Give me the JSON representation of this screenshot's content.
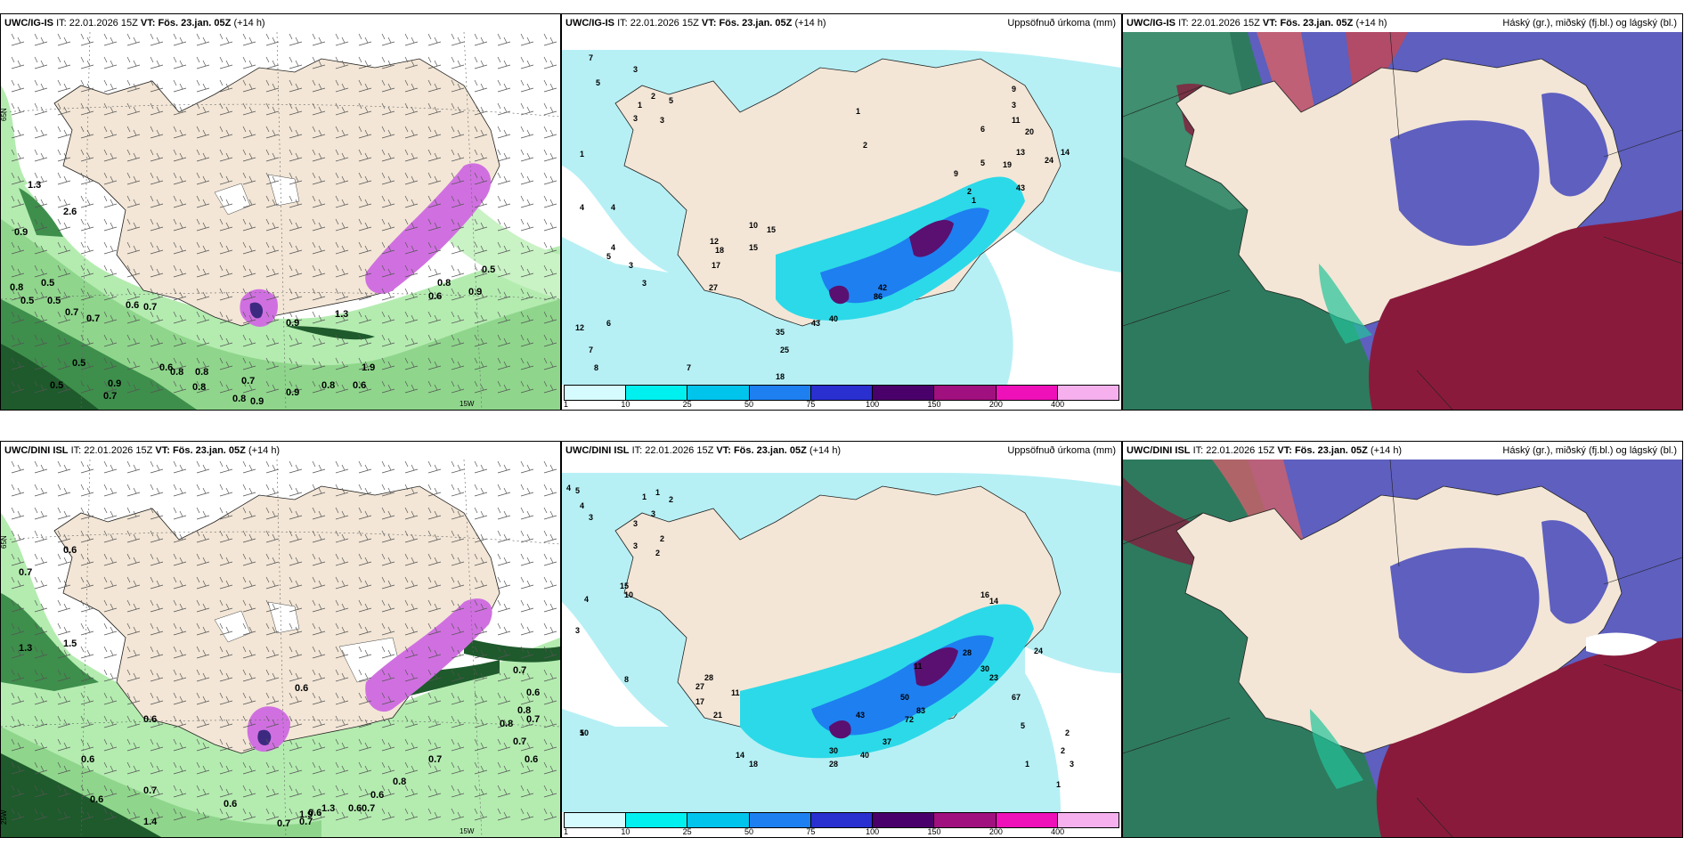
{
  "top_row": {
    "wind": {
      "model": "UWC/IG-IS",
      "it_label": "IT:",
      "it_time": "22.01.2026 15Z",
      "vt_label": "VT:",
      "vt_time": "Fös. 23.jan. 05Z",
      "lead": "(+14 h)",
      "lat_label": "65N",
      "lon_label": "15W",
      "values": [
        "1.3",
        "2.6",
        "0.9",
        "0.8",
        "0.5",
        "0.5",
        "0.5",
        "0.7",
        "0.7",
        "0.6",
        "0.7",
        "0.5",
        "0.5",
        "0.9",
        "0.7",
        "0.6",
        "0.8",
        "0.8",
        "0.8",
        "0.7",
        "0.8",
        "0.9",
        "0.9",
        "0.8",
        "0.6",
        "1.9",
        "1.3",
        "0.9",
        "0.6",
        "0.8",
        "0.5",
        "0.9"
      ]
    },
    "precip": {
      "model": "UWC/IG-IS",
      "it_label": "IT:",
      "it_time": "22.01.2026 15Z",
      "vt_label": "VT:",
      "vt_time": "Fös. 23.jan. 05Z",
      "lead": "(+14 h)",
      "title": "Uppsöfnuð úrkoma (mm)",
      "values": [
        "7",
        "5",
        "3",
        "1",
        "2",
        "3",
        "5",
        "3",
        "1",
        "2",
        "1",
        "4",
        "4",
        "4",
        "5",
        "3",
        "3",
        "12",
        "6",
        "7",
        "8",
        "7",
        "25",
        "18",
        "35",
        "43",
        "40",
        "86",
        "42",
        "15",
        "10",
        "15",
        "12",
        "18",
        "17",
        "27",
        "6",
        "9",
        "3",
        "11",
        "13",
        "20",
        "24",
        "14",
        "19",
        "43",
        "5",
        "9",
        "2",
        "1"
      ]
    },
    "cloud": {
      "model": "UWC/IG-IS",
      "it_label": "IT:",
      "it_time": "22.01.2026 15Z",
      "vt_label": "VT:",
      "vt_time": "Fös. 23.jan. 05Z",
      "lead": "(+14 h)",
      "title": "Háský (gr.), miðský (fj.bl.) og lágský (bl.)"
    }
  },
  "bottom_row": {
    "wind": {
      "model": "UWC/DINI ISL",
      "it_label": "IT:",
      "it_time": "22.01.2026 15Z",
      "vt_label": "VT:",
      "vt_time": "Fös. 23.jan. 05Z",
      "lead": "(+14 h)",
      "lat_label": "65N",
      "lon_label": "15W",
      "lon_label_left": "25W",
      "values": [
        "0.6",
        "0.7",
        "1.3",
        "1.5",
        "0.6",
        "0.6",
        "0.6",
        "0.6",
        "0.7",
        "0.7",
        "0.7",
        "0.6",
        "1.3",
        "1.9",
        "0.6",
        "0.7",
        "0.6",
        "0.8",
        "0.7",
        "0.7",
        "0.6",
        "0.8",
        "0.8",
        "0.7",
        "0.7",
        "0.6",
        "1.4",
        "0.6"
      ]
    },
    "precip": {
      "model": "UWC/DINI ISL",
      "it_label": "IT:",
      "it_time": "22.01.2026 15Z",
      "vt_label": "VT:",
      "vt_time": "Fös. 23.jan. 05Z",
      "lead": "(+14 h)",
      "title": "Uppsöfnuð úrkoma (mm)",
      "values": [
        "4",
        "5",
        "4",
        "3",
        "1",
        "1",
        "2",
        "3",
        "3",
        "2",
        "2",
        "3",
        "15",
        "10",
        "8",
        "5",
        "10",
        "4",
        "3",
        "28",
        "27",
        "17",
        "11",
        "21",
        "14",
        "18",
        "30",
        "28",
        "40",
        "37",
        "83",
        "72",
        "50",
        "43",
        "11",
        "16",
        "14",
        "24",
        "28",
        "30",
        "23",
        "67",
        "5",
        "1",
        "2",
        "2",
        "3",
        "1"
      ]
    },
    "cloud": {
      "model": "UWC/DINI ISL",
      "it_label": "IT:",
      "it_time": "22.01.2026 15Z",
      "vt_label": "VT:",
      "vt_time": "Fös. 23.jan. 05Z",
      "lead": "(+14 h)",
      "title": "Háský (gr.), miðský (fj.bl.) og lágský (bl.)"
    }
  },
  "precip_legend": {
    "ticks": [
      "1",
      "10",
      "25",
      "50",
      "75",
      "100",
      "150",
      "200",
      "400"
    ],
    "colors": [
      "#d6fbff",
      "#00f0f0",
      "#00c4ec",
      "#1e7ff0",
      "#2a2fcf",
      "#4a006a",
      "#a0107e",
      "#ee10b8",
      "#f6b0ee"
    ]
  },
  "colors": {
    "land": "#f3e6d6",
    "sea_white": "#ffffff",
    "wind_light": "#b4ecb0",
    "wind_mid": "#5fb56a",
    "wind_dark": "#1e5a2b",
    "precip_light": "#b6f0f5",
    "precip_cyan": "#2cd9e8",
    "precip_blue": "#2a6fd6",
    "precip_purple": "#5a1070",
    "cloud_low": "#5e5fbf",
    "cloud_mid": "#2b8f6d",
    "cloud_high": "#8a1a3c",
    "cloud_sea_green": "#2e7a5e"
  }
}
